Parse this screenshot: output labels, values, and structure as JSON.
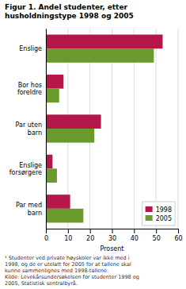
{
  "chart_data": {
    "type": "bar",
    "orientation": "horizontal",
    "title": "Figur 1. Andel studenter, etter husholdningstype 1998 og 2005",
    "categories": [
      "Enslige",
      "Bor hos\nforeldre",
      "Par uten\nbarn",
      "Enslige\nforsørgere",
      "Par med\nbarn"
    ],
    "series": [
      {
        "name": "1998",
        "color": "#b5174b",
        "values": [
          53,
          8,
          25,
          3,
          11
        ]
      },
      {
        "name": "2005",
        "color": "#6a9a2b",
        "values": [
          49,
          6,
          22,
          5,
          17
        ]
      }
    ],
    "xlabel": "Prosent",
    "xlim": [
      0,
      60
    ],
    "xticks": [
      0,
      10,
      20,
      30,
      40,
      50,
      60
    ],
    "grid": true,
    "legend": "lower right",
    "footnote": "¹ Studenter ved private høyskoler var ikke med i\n1998, og de er utelatt for 2005 for at tallene skal\nkunne sammenlignes med 1998-tallene.\nKilde: Levekårsundersøkelsen for studenter 1998 og\n2005, Statistisk sentralbyrå."
  }
}
